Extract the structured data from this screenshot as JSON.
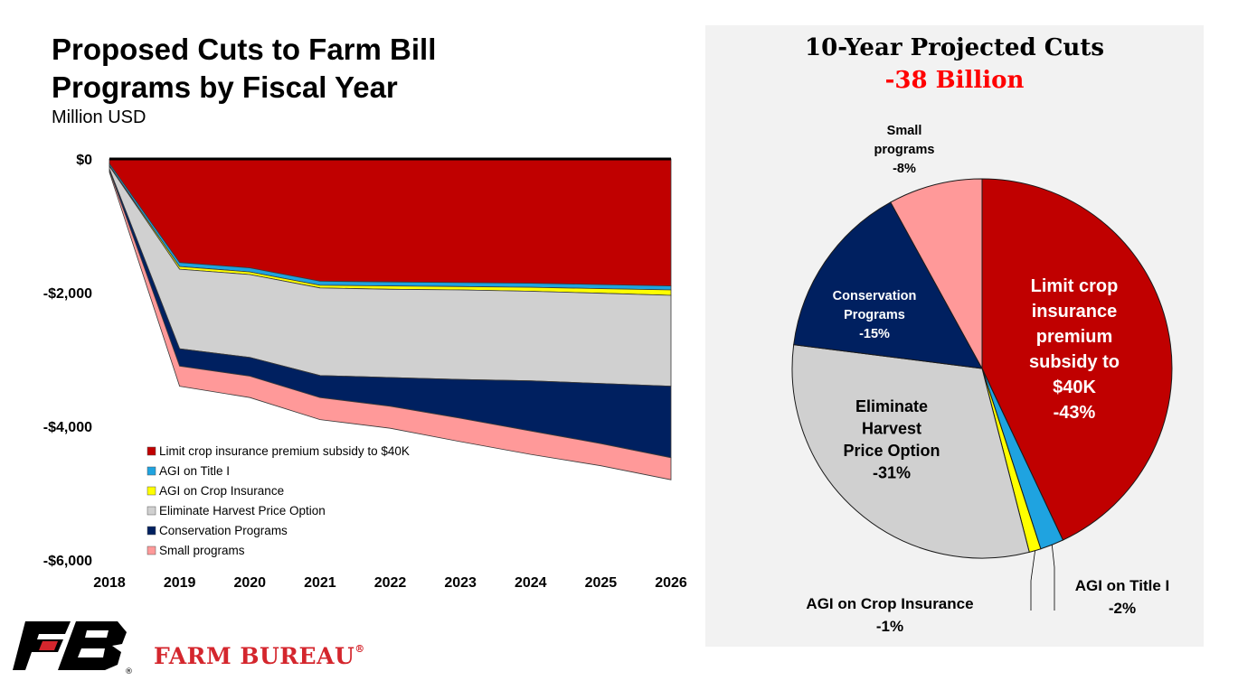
{
  "left_chart": {
    "title_line1": "Proposed Cuts to Farm Bill",
    "title_line2": "Programs by Fiscal Year",
    "subtitle": "Million USD"
  },
  "right_chart": {
    "title": "10-Year Projected Cuts",
    "total": "-38 Billion"
  },
  "brand": {
    "name": "FARM BUREAU",
    "mark": "®"
  },
  "colors": {
    "crop_insurance": "#c00000",
    "agi_title1": "#1fa3e0",
    "agi_crop": "#ffff00",
    "harvest_option": "#d0d0d0",
    "conservation": "#002060",
    "small": "#ff9999",
    "brand_red": "#d4262d"
  },
  "chart_data": [
    {
      "type": "area",
      "stacked": true,
      "title": "Proposed Cuts to Farm Bill Programs by Fiscal Year",
      "ylabel": "Million USD",
      "x": [
        "2018",
        "2019",
        "2020",
        "2021",
        "2022",
        "2023",
        "2024",
        "2025",
        "2026"
      ],
      "ylim": [
        -6000,
        0
      ],
      "yticks": [
        {
          "value": 0,
          "label": "$0"
        },
        {
          "value": -2000,
          "label": "-$2,000"
        },
        {
          "value": -4000,
          "label": "-$4,000"
        },
        {
          "value": -6000,
          "label": "-$6,000"
        }
      ],
      "legend_position": "bottom-left",
      "series": [
        {
          "name": "Limit crop insurance premium subsidy to $40K",
          "color_key": "crop_insurance",
          "values": [
            -70,
            -1550,
            -1630,
            -1830,
            -1840,
            -1850,
            -1860,
            -1880,
            -1900
          ]
        },
        {
          "name": "AGI on Title I",
          "color_key": "agi_title1",
          "values": [
            -30,
            -60,
            -60,
            -60,
            -60,
            -60,
            -60,
            -60,
            -60
          ]
        },
        {
          "name": "AGI on Crop Insurance",
          "color_key": "agi_crop",
          "values": [
            -10,
            -40,
            -40,
            -40,
            -50,
            -50,
            -60,
            -70,
            -80
          ]
        },
        {
          "name": "Eliminate Harvest Price Option",
          "color_key": "harvest_option",
          "values": [
            -40,
            -1190,
            -1240,
            -1310,
            -1320,
            -1340,
            -1340,
            -1350,
            -1360
          ]
        },
        {
          "name": "Conservation Programs",
          "color_key": "conservation",
          "values": [
            -20,
            -260,
            -280,
            -330,
            -430,
            -580,
            -750,
            -900,
            -1070
          ]
        },
        {
          "name": "Small programs",
          "color_key": "small",
          "values": [
            -30,
            -300,
            -320,
            -330,
            -330,
            -350,
            -350,
            -330,
            -330
          ]
        }
      ]
    },
    {
      "type": "pie",
      "title": "10-Year Projected Cuts",
      "subtitle": "-38 Billion",
      "slices": [
        {
          "label": "Limit crop insurance premium subsidy to $40K",
          "pct_label": "-43%",
          "value": 43,
          "color_key": "crop_insurance"
        },
        {
          "label": "AGI on Title I",
          "pct_label": "-2%",
          "value": 2,
          "color_key": "agi_title1"
        },
        {
          "label": "AGI on Crop Insurance",
          "pct_label": "-1%",
          "value": 1,
          "color_key": "agi_crop"
        },
        {
          "label": "Eliminate Harvest Price Option",
          "pct_label": "-31%",
          "value": 31,
          "color_key": "harvest_option"
        },
        {
          "label": "Conservation Programs",
          "pct_label": "-15%",
          "value": 15,
          "color_key": "conservation"
        },
        {
          "label": "Small programs",
          "pct_label": "-8%",
          "value": 8,
          "color_key": "small"
        }
      ]
    }
  ]
}
